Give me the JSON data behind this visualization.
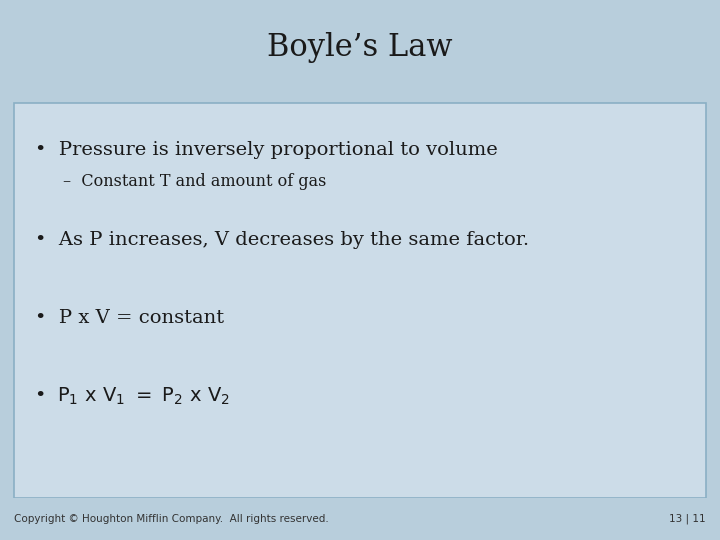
{
  "title": "Boyle’s Law",
  "title_fontsize": 22,
  "title_color": "#1a1a1a",
  "header_bg_color": "#b8ced e",
  "body_bg_color": "#cddce8",
  "bullet1": "Pressure is inversely proportional to volume",
  "sub_bullet1": "–  Constant T and amount of gas",
  "bullet2": "As P increases, V decreases by the same factor.",
  "bullet3": "P x V = constant",
  "footer_left": "Copyright © Houghton Mifflin Company.  All rights reserved.",
  "footer_right": "13 | 11",
  "footer_fontsize": 7.5,
  "bullet_fontsize": 14,
  "sub_bullet_fontsize": 11.5,
  "bullet_color": "#1a1a1a",
  "header_bg": "#b8cedc",
  "body_bg": "#ccdce8",
  "border_color": "#8aafc5"
}
